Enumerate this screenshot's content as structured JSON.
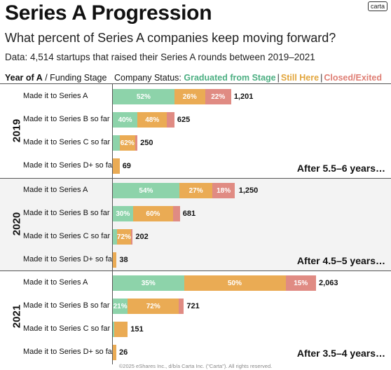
{
  "title": "Series A Progression",
  "subtitle": "What percent of Series A companies keep moving forward?",
  "data_note": "Data: 4,514 startups that raised their Series A rounds between 2019–2021",
  "logo_text": "carta",
  "header": {
    "left_bold": "Year of A",
    "left_rest": " / Funding Stage",
    "status_prefix": "Company Status: ",
    "graduated": "Graduated from Stage",
    "still_here": "Still Here",
    "closed": "Closed/Exited"
  },
  "colors": {
    "graduated": "#8dd3aa",
    "still_here": "#eaab54",
    "closed": "#e08b83"
  },
  "footer": "©2025 eShares Inc., d/b/a Carta Inc. (\"Carta\"). All rights reserved.",
  "chart_data": {
    "type": "bar",
    "orientation": "horizontal",
    "stacked": true,
    "series_names": [
      "Graduated from Stage",
      "Still Here",
      "Closed/Exited"
    ],
    "groups": [
      {
        "year": "2019",
        "note": "After 5.5–6 years…",
        "rows": [
          {
            "label": "Made it to Series A",
            "total": 1201,
            "total_label": "1,201",
            "shares": [
              52,
              26,
              22
            ],
            "share_labels": [
              "52%",
              "26%",
              "22%"
            ]
          },
          {
            "label": "Made it to Series B so far",
            "total": 625,
            "total_label": "625",
            "shares": [
              40,
              48,
              12
            ],
            "share_labels": [
              "40%",
              "48%",
              ""
            ]
          },
          {
            "label": "Made it to Series C so far",
            "total": 250,
            "total_label": "250",
            "shares": [
              28,
              62,
              10
            ],
            "share_labels": [
              "",
              "62%",
              ""
            ]
          },
          {
            "label": "Made it to Series D+ so far",
            "total": 69,
            "total_label": "69",
            "shares": [
              0,
              100,
              0
            ],
            "share_labels": [
              "",
              "",
              ""
            ]
          }
        ]
      },
      {
        "year": "2020",
        "note": "After 4.5–5 years…",
        "rows": [
          {
            "label": "Made it to Series A",
            "total": 1250,
            "total_label": "1,250",
            "shares": [
              54,
              27,
              18
            ],
            "share_labels": [
              "54%",
              "27%",
              "18%"
            ]
          },
          {
            "label": "Made it to Series B so far",
            "total": 681,
            "total_label": "681",
            "shares": [
              30,
              60,
              10
            ],
            "share_labels": [
              "30%",
              "60%",
              ""
            ]
          },
          {
            "label": "Made it to Series C so far",
            "total": 202,
            "total_label": "202",
            "shares": [
              20,
              72,
              8
            ],
            "share_labels": [
              "",
              "72%",
              ""
            ]
          },
          {
            "label": "Made it to Series D+ so far",
            "total": 38,
            "total_label": "38",
            "shares": [
              0,
              100,
              0
            ],
            "share_labels": [
              "",
              "",
              ""
            ]
          }
        ]
      },
      {
        "year": "2021",
        "note": "After 3.5–4 years…",
        "rows": [
          {
            "label": "Made it to Series A",
            "total": 2063,
            "total_label": "2,063",
            "shares": [
              35,
              50,
              15
            ],
            "share_labels": [
              "35%",
              "50%",
              "15%"
            ]
          },
          {
            "label": "Made it to Series B so far",
            "total": 721,
            "total_label": "721",
            "shares": [
              21,
              72,
              7
            ],
            "share_labels": [
              "21%",
              "72%",
              ""
            ]
          },
          {
            "label": "Made it to Series C so far",
            "total": 151,
            "total_label": "151",
            "shares": [
              10,
              90,
              0
            ],
            "share_labels": [
              "",
              "",
              ""
            ]
          },
          {
            "label": "Made it to Series D+ so far",
            "total": 26,
            "total_label": "26",
            "shares": [
              0,
              100,
              0
            ],
            "share_labels": [
              "",
              "",
              ""
            ]
          }
        ]
      }
    ]
  }
}
